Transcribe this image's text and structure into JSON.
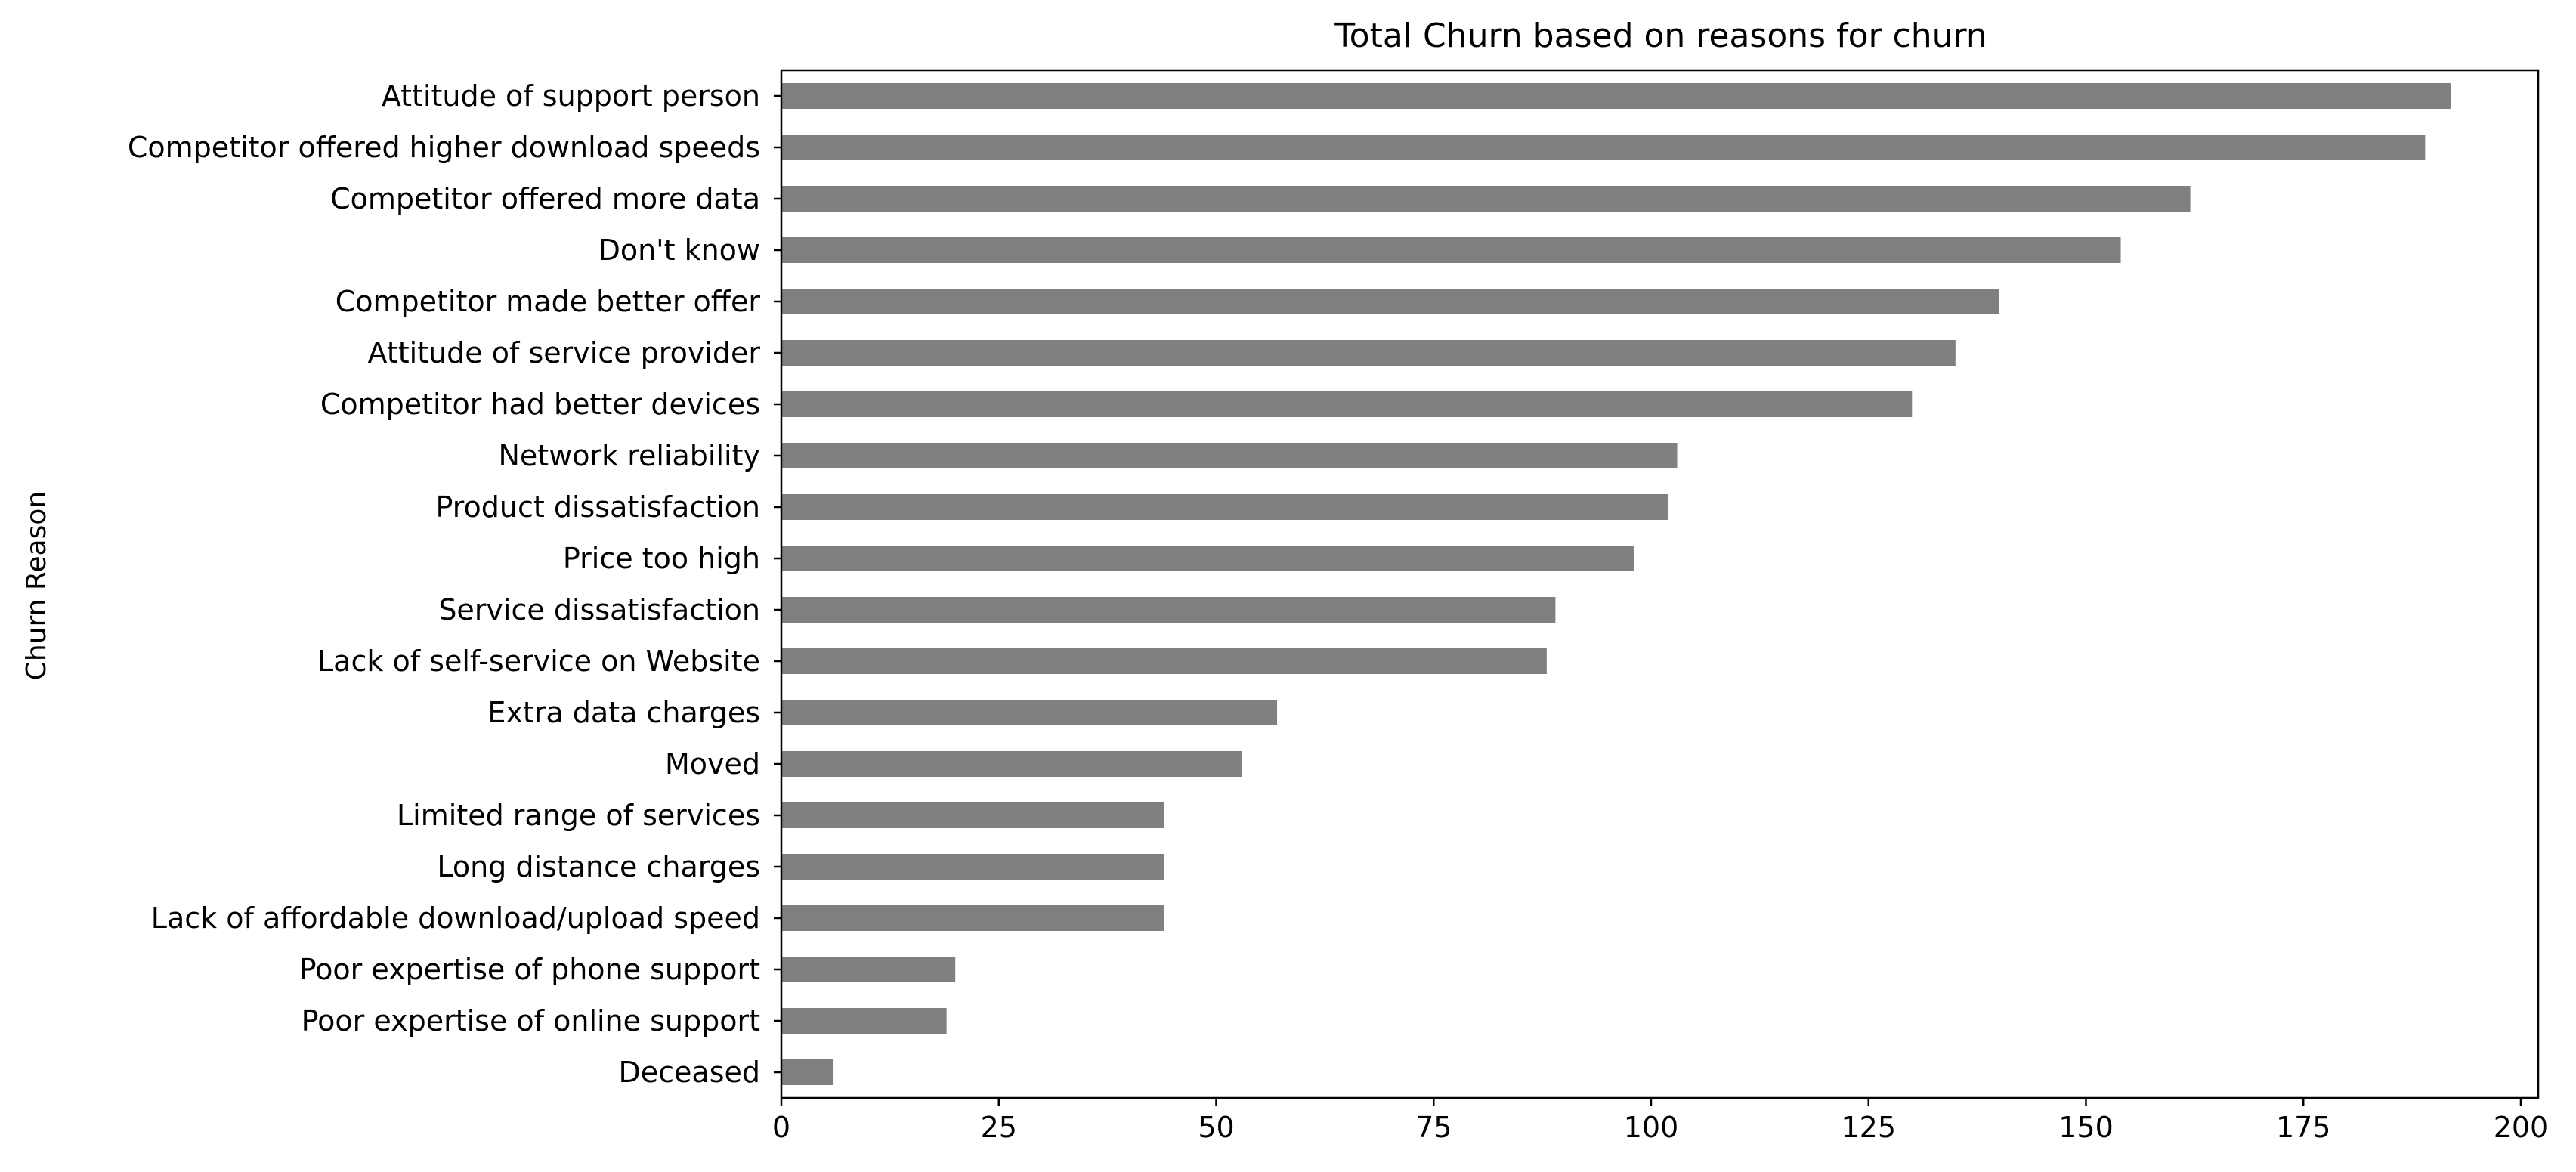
{
  "chart_data": {
    "type": "bar",
    "orientation": "horizontal",
    "title": "Total Churn based on reasons for churn",
    "xlabel": "",
    "ylabel": "Churn Reason",
    "xlim": [
      0,
      202
    ],
    "xticks": [
      0,
      25,
      50,
      75,
      100,
      125,
      150,
      175,
      200
    ],
    "grid": false,
    "bar_color": "#808080",
    "categories": [
      "Attitude of support person",
      "Competitor offered higher download speeds",
      "Competitor offered more data",
      "Don't know",
      "Competitor made better offer",
      "Attitude of service provider",
      "Competitor had better devices",
      "Network reliability",
      "Product dissatisfaction",
      "Price too high",
      "Service dissatisfaction",
      "Lack of self-service on Website",
      "Extra data charges",
      "Moved",
      "Limited range of services",
      "Long distance charges",
      "Lack of affordable download/upload speed",
      "Poor expertise of phone support",
      "Poor expertise of online support",
      "Deceased"
    ],
    "values": [
      192,
      189,
      162,
      154,
      140,
      135,
      130,
      103,
      102,
      98,
      89,
      88,
      57,
      53,
      44,
      44,
      44,
      20,
      19,
      6
    ]
  }
}
